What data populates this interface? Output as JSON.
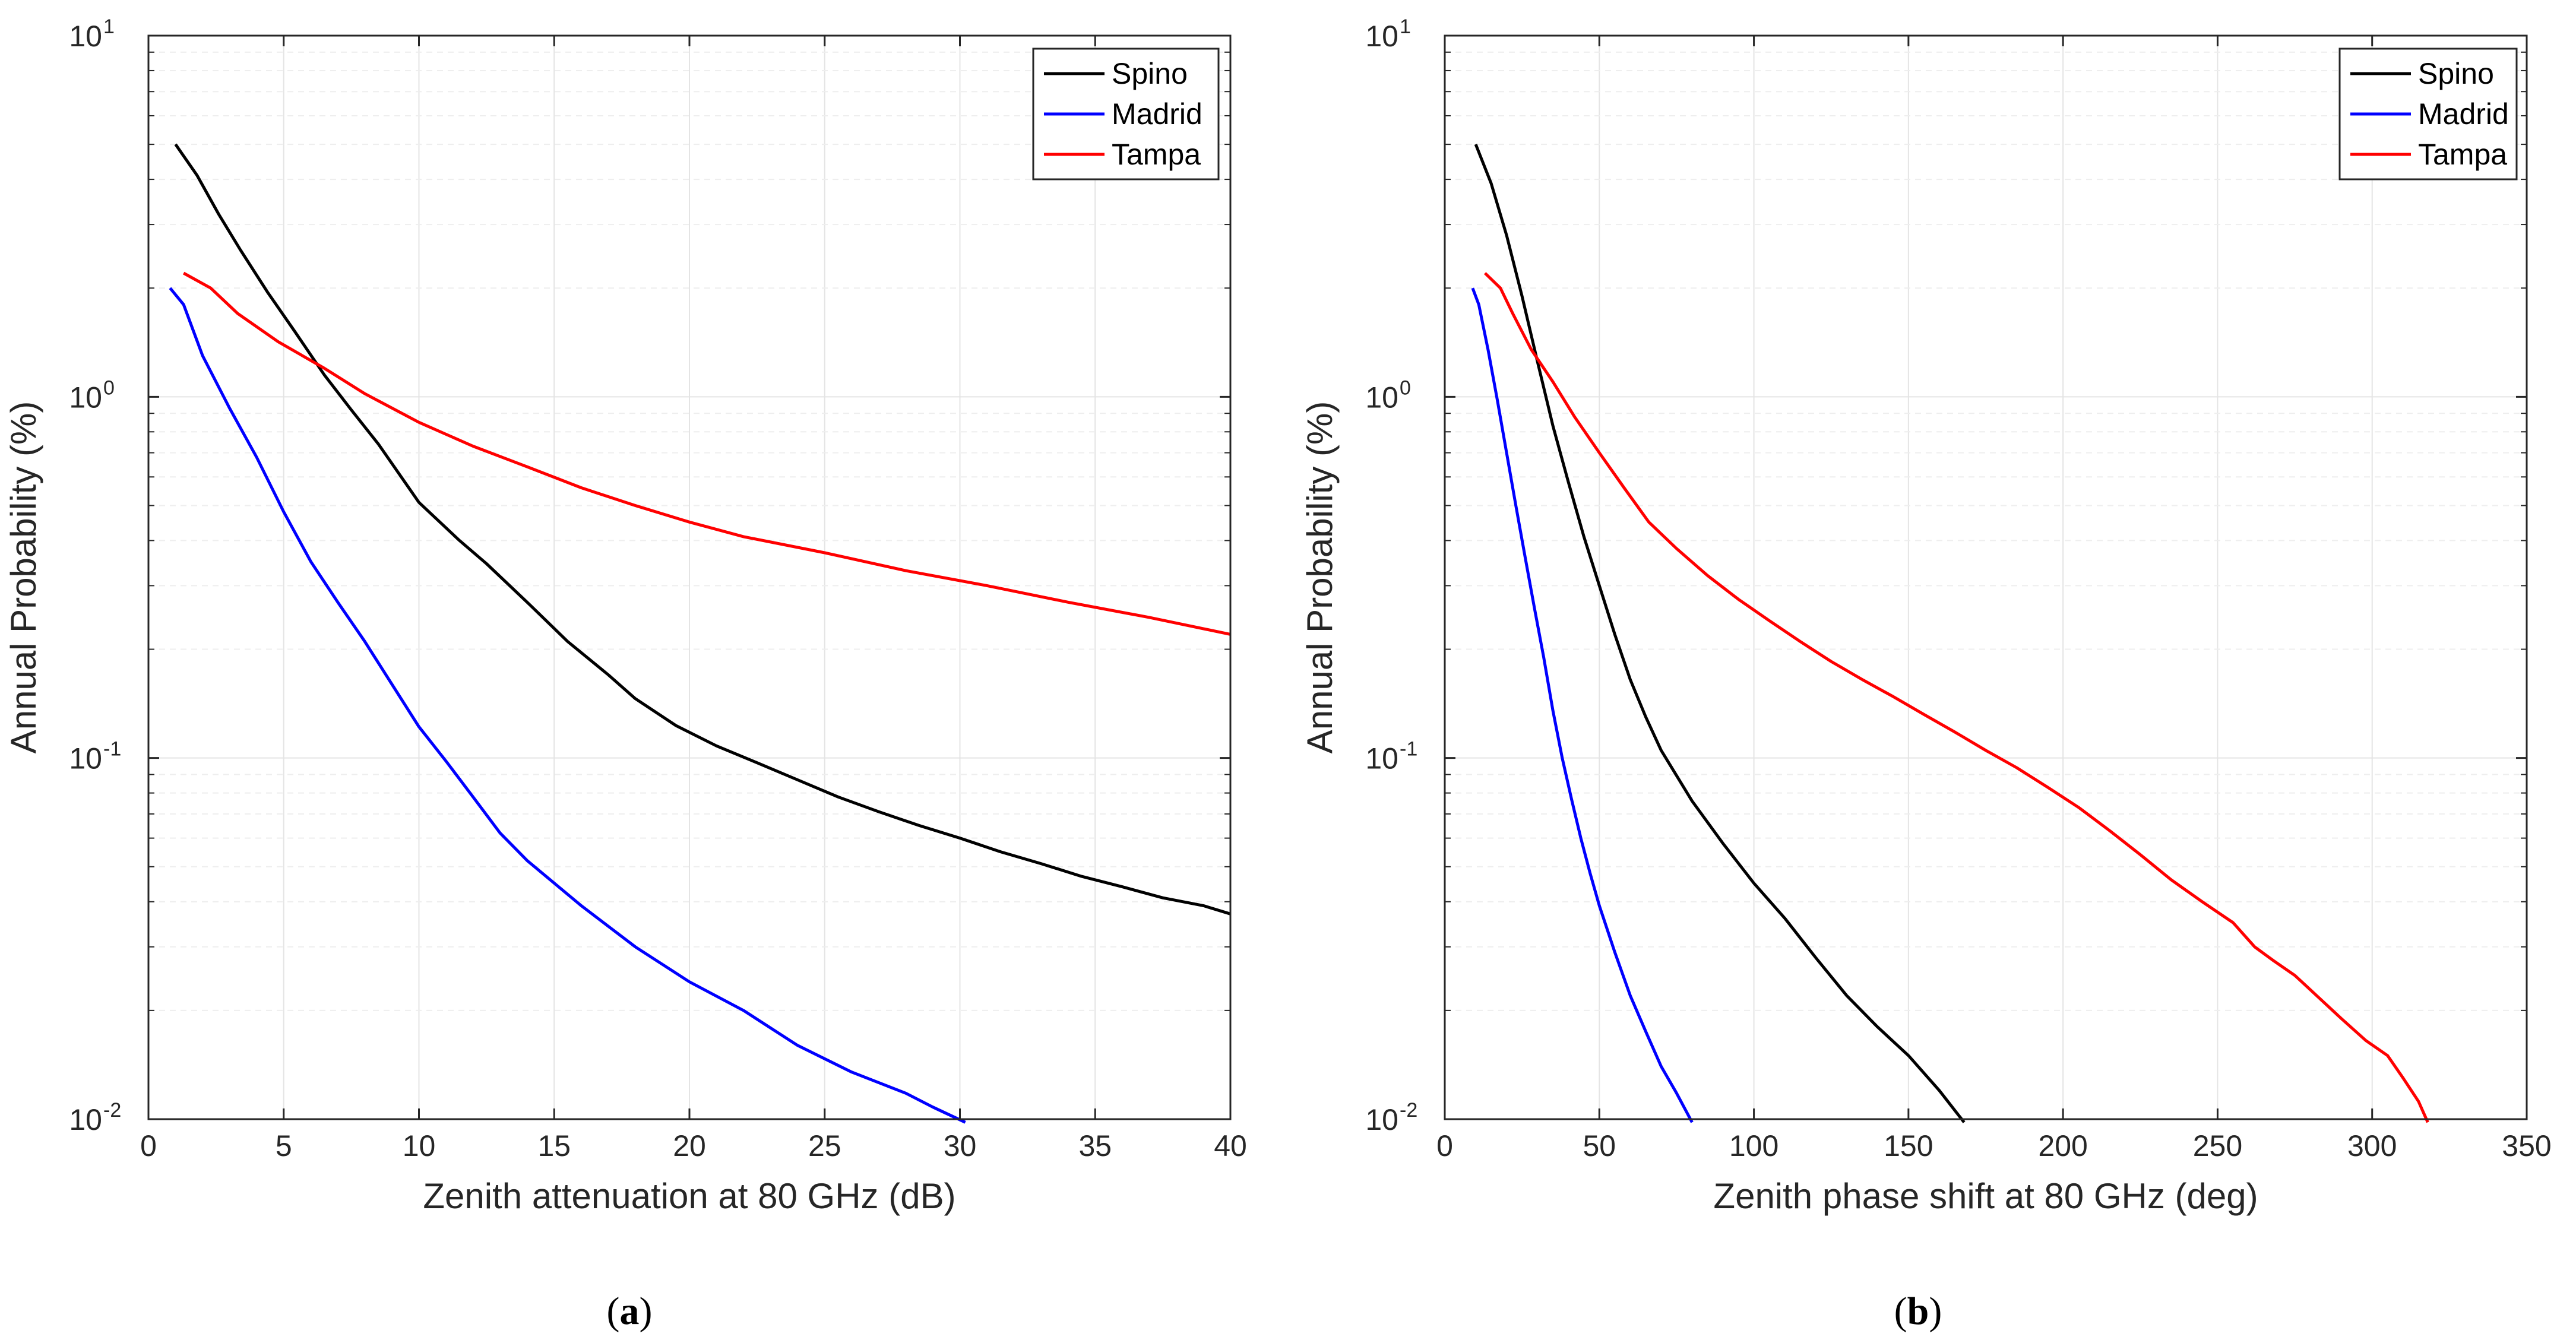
{
  "colors": {
    "Spino": "#000000",
    "Madrid": "#0000ff",
    "Tampa": "#ff0000",
    "grid": "#e4e4e4",
    "axis": "#262626"
  },
  "chart_data": [
    {
      "type": "line",
      "panel_label": "a",
      "xlabel": "Zenith attenuation at 80 GHz (dB)",
      "ylabel": "Annual Probability (%)",
      "xlim": [
        0,
        40
      ],
      "ylim": [
        0.01,
        10
      ],
      "yscale": "log",
      "grid": true,
      "legend_position": "top-right",
      "xticks": [
        0,
        5,
        10,
        15,
        20,
        25,
        30,
        35,
        40
      ],
      "xtick_labels": [
        "0",
        "5",
        "10",
        "15",
        "20",
        "25",
        "30",
        "35",
        "40"
      ],
      "yticks": [
        {
          "value": 0.01,
          "base": "10",
          "exp": "-2"
        },
        {
          "value": 0.1,
          "base": "10",
          "exp": "-1"
        },
        {
          "value": 1,
          "base": "10",
          "exp": "0"
        },
        {
          "value": 10,
          "base": "10",
          "exp": "1"
        }
      ],
      "series": [
        {
          "name": "Spino",
          "x": [
            1,
            1.8,
            2.6,
            3.4,
            4.4,
            5.4,
            6.5,
            7.5,
            8.5,
            10,
            11.5,
            12.5,
            14,
            15.5,
            17,
            18,
            19.5,
            21,
            22.5,
            24,
            25.5,
            27,
            28.5,
            30,
            31.5,
            33,
            34.5,
            36,
            37.5,
            39,
            40
          ],
          "y": [
            5.0,
            4.1,
            3.2,
            2.55,
            1.95,
            1.52,
            1.15,
            0.92,
            0.74,
            0.51,
            0.4,
            0.345,
            0.27,
            0.21,
            0.17,
            0.146,
            0.123,
            0.108,
            0.097,
            0.087,
            0.078,
            0.071,
            0.065,
            0.06,
            0.055,
            0.051,
            0.047,
            0.044,
            0.041,
            0.039,
            0.037
          ]
        },
        {
          "name": "Madrid",
          "x": [
            0.8,
            1.3,
            2,
            3,
            4,
            5,
            6,
            7,
            8,
            9,
            10,
            11,
            12,
            13,
            14,
            16,
            18,
            20,
            22,
            24,
            26,
            28,
            29,
            30.2
          ],
          "y": [
            2.0,
            1.8,
            1.3,
            0.93,
            0.68,
            0.48,
            0.35,
            0.27,
            0.21,
            0.16,
            0.122,
            0.098,
            0.078,
            0.062,
            0.052,
            0.039,
            0.03,
            0.024,
            0.02,
            0.016,
            0.0135,
            0.0118,
            0.0108,
            0.0098
          ]
        },
        {
          "name": "Tampa",
          "x": [
            1.3,
            2.3,
            3.3,
            4.8,
            6.5,
            8,
            10,
            12,
            14,
            16,
            18,
            20,
            22,
            25,
            28,
            31,
            34,
            37,
            40
          ],
          "y": [
            2.2,
            2.0,
            1.7,
            1.42,
            1.2,
            1.02,
            0.85,
            0.73,
            0.64,
            0.56,
            0.5,
            0.45,
            0.41,
            0.37,
            0.33,
            0.3,
            0.27,
            0.245,
            0.22
          ]
        }
      ]
    },
    {
      "type": "line",
      "panel_label": "b",
      "xlabel": "Zenith phase shift at 80 GHz (deg)",
      "ylabel": "Annual Probability (%)",
      "xlim": [
        0,
        350
      ],
      "ylim": [
        0.01,
        10
      ],
      "yscale": "log",
      "grid": true,
      "legend_position": "top-right",
      "xticks": [
        0,
        50,
        100,
        150,
        200,
        250,
        300,
        350
      ],
      "xtick_labels": [
        "0",
        "50",
        "100",
        "150",
        "200",
        "250",
        "300",
        "350"
      ],
      "yticks": [
        {
          "value": 0.01,
          "base": "10",
          "exp": "-2"
        },
        {
          "value": 0.1,
          "base": "10",
          "exp": "-1"
        },
        {
          "value": 1,
          "base": "10",
          "exp": "0"
        },
        {
          "value": 10,
          "base": "10",
          "exp": "1"
        }
      ],
      "series": [
        {
          "name": "Spino",
          "x": [
            10,
            15,
            20,
            25,
            30,
            35,
            40,
            45,
            50,
            55,
            60,
            65,
            70,
            80,
            90,
            100,
            110,
            120,
            130,
            140,
            150,
            160,
            168
          ],
          "y": [
            5.0,
            3.9,
            2.8,
            1.9,
            1.25,
            0.83,
            0.58,
            0.41,
            0.3,
            0.22,
            0.165,
            0.13,
            0.105,
            0.076,
            0.058,
            0.045,
            0.036,
            0.028,
            0.022,
            0.018,
            0.015,
            0.012,
            0.0098
          ]
        },
        {
          "name": "Madrid",
          "x": [
            9,
            11,
            14,
            17,
            20,
            23,
            26,
            29,
            32,
            35,
            38,
            41,
            44,
            47,
            50,
            55,
            60,
            65,
            70,
            75,
            80
          ],
          "y": [
            2.0,
            1.8,
            1.35,
            0.98,
            0.7,
            0.5,
            0.36,
            0.26,
            0.19,
            0.135,
            0.1,
            0.077,
            0.06,
            0.048,
            0.039,
            0.029,
            0.022,
            0.0175,
            0.014,
            0.0118,
            0.0098
          ]
        },
        {
          "name": "Tampa",
          "x": [
            13,
            18,
            22,
            28,
            35,
            42,
            50,
            58,
            66,
            75,
            85,
            95,
            105,
            115,
            125,
            135,
            145,
            155,
            165,
            175,
            185,
            195,
            205,
            215,
            225,
            235,
            245,
            255,
            262,
            268,
            275,
            282,
            290,
            298,
            305,
            310,
            315,
            318
          ],
          "y": [
            2.2,
            2.0,
            1.7,
            1.35,
            1.1,
            0.88,
            0.7,
            0.56,
            0.45,
            0.38,
            0.32,
            0.275,
            0.24,
            0.21,
            0.185,
            0.165,
            0.148,
            0.132,
            0.118,
            0.105,
            0.094,
            0.083,
            0.073,
            0.063,
            0.054,
            0.046,
            0.04,
            0.035,
            0.03,
            0.0275,
            0.025,
            0.022,
            0.019,
            0.0165,
            0.015,
            0.013,
            0.0112,
            0.0098
          ]
        }
      ]
    }
  ]
}
